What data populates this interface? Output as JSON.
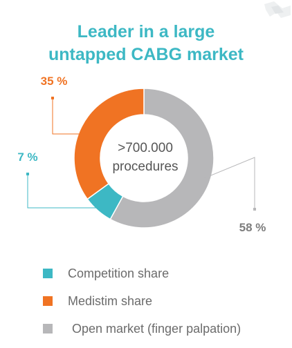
{
  "title_lines": [
    "Leader in a large",
    "untapped CABG market"
  ],
  "center_text": [
    ">700.000",
    "procedures"
  ],
  "chart_data": {
    "type": "pie",
    "variant": "donut",
    "title": "Leader in a large untapped CABG market",
    "slices": [
      {
        "label": "Competition share",
        "value": 7,
        "display": "7 %",
        "color": "#3db8c4"
      },
      {
        "label": "Medistim share",
        "value": 35,
        "display": "35 %",
        "color": "#f07323"
      },
      {
        "label": "Open market (finger palpation)",
        "value": 58,
        "display": "58 %",
        "color": "#b7b7b9"
      }
    ],
    "legend_position": "bottom-left"
  },
  "colors": {
    "title": "#3db8c4",
    "competition": "#3db8c4",
    "medistim": "#f07323",
    "open_market": "#b7b7b9",
    "open_label": "#7d7d7d"
  }
}
